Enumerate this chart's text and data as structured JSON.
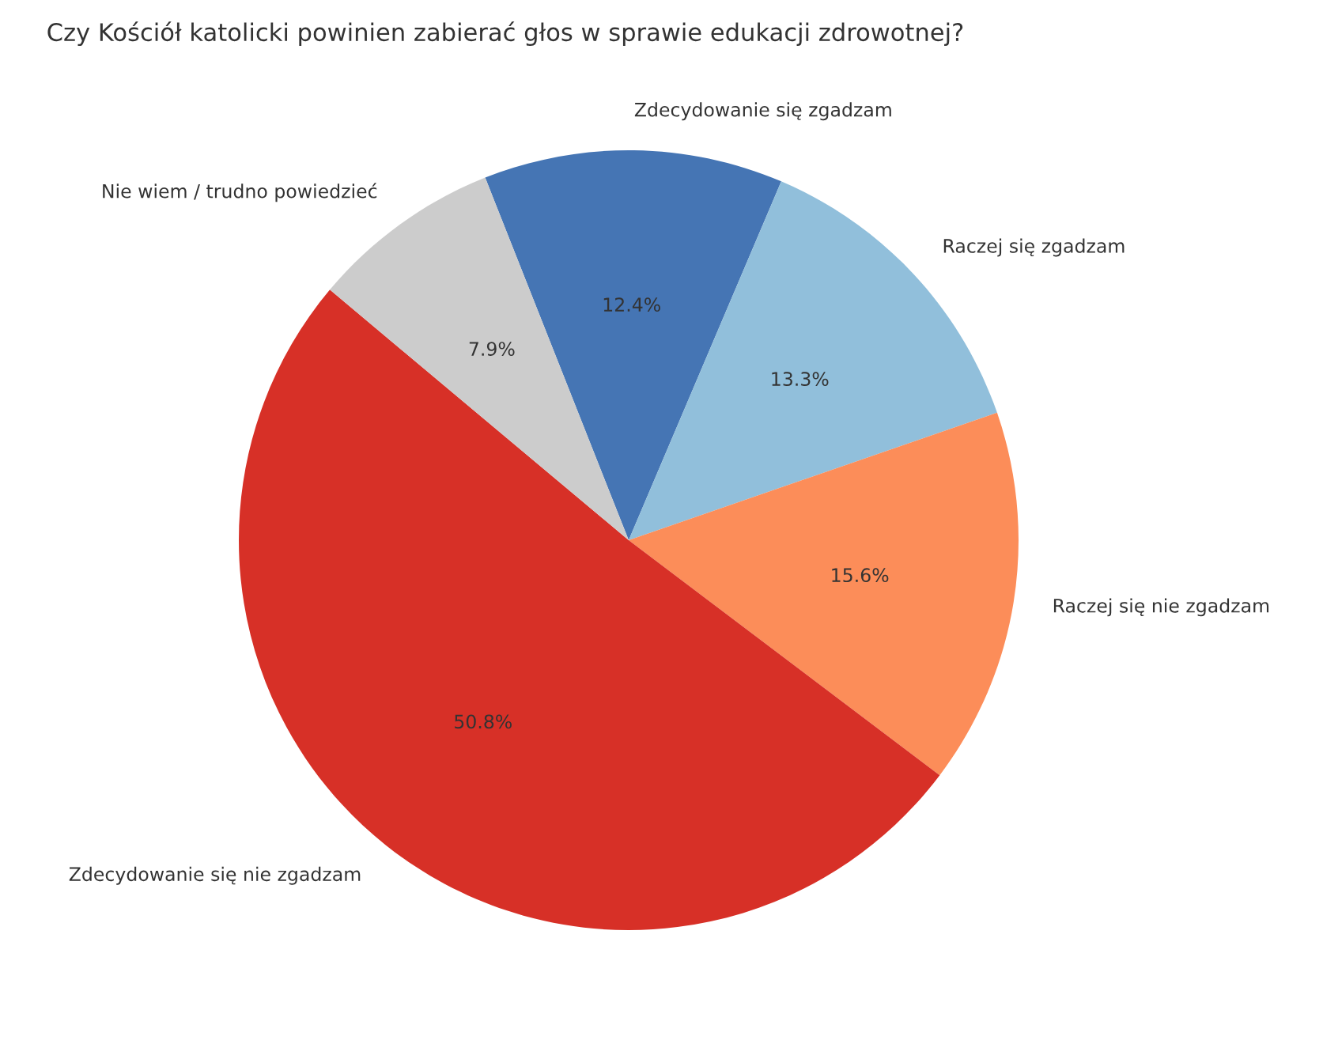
{
  "chart_data": {
    "type": "pie",
    "title": "Czy Kościół katolicki powinien zabierać głos w sprawie edukacji zdrowotnej?",
    "categories": [
      "Zdecydowanie się zgadzam",
      "Raczej się zgadzam",
      "Raczej się nie zgadzam",
      "Zdecydowanie się nie zgadzam",
      "Nie wiem / trudno powiedzieć"
    ],
    "values": [
      12.4,
      13.3,
      15.6,
      50.8,
      7.9
    ],
    "colors": [
      "#4575b4",
      "#91bfdb",
      "#fc8d59",
      "#d73027",
      "#cccccc"
    ],
    "value_labels": [
      "12.4%",
      "13.3%",
      "15.6%",
      "50.8%",
      "7.9%"
    ],
    "legend": false
  }
}
